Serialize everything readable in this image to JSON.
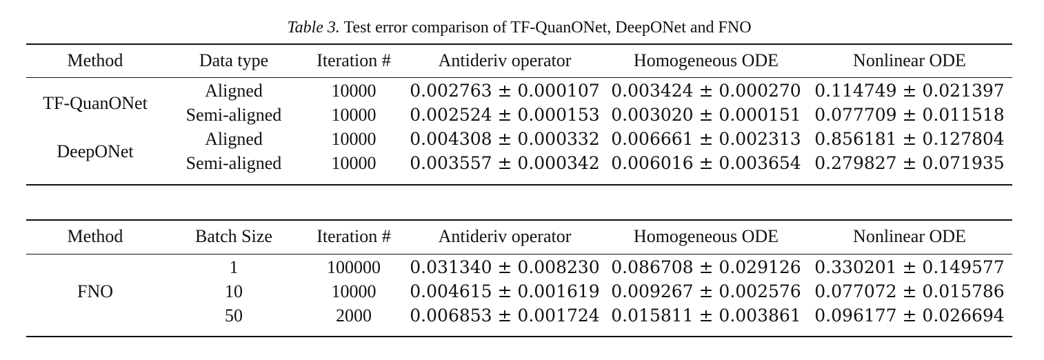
{
  "caption": {
    "label": "Table 3.",
    "text": "Test error comparison of TF-QuanONet, DeepONet and FNO"
  },
  "table1": {
    "headers": [
      "Method",
      "Data type",
      "Iteration #",
      "Antideriv operator",
      "Homogeneous ODE",
      "Nonlinear ODE"
    ],
    "groups": [
      {
        "method": "TF-QuanONet",
        "rows": [
          {
            "type": "Aligned",
            "iter": "10000",
            "antideriv": "0.002763 ± 0.000107",
            "homog": "0.003424 ± 0.000270",
            "nonlin": "0.114749 ± 0.021397"
          },
          {
            "type": "Semi-aligned",
            "iter": "10000",
            "antideriv": "0.002524 ± 0.000153",
            "homog": "0.003020 ± 0.000151",
            "nonlin": "0.077709 ± 0.011518"
          }
        ]
      },
      {
        "method": "DeepONet",
        "rows": [
          {
            "type": "Aligned",
            "iter": "10000",
            "antideriv": "0.004308 ± 0.000332",
            "homog": "0.006661 ± 0.002313",
            "nonlin": "0.856181 ± 0.127804"
          },
          {
            "type": "Semi-aligned",
            "iter": "10000",
            "antideriv": "0.003557 ± 0.000342",
            "homog": "0.006016 ± 0.003654",
            "nonlin": "0.279827 ± 0.071935"
          }
        ]
      }
    ]
  },
  "table2": {
    "headers": [
      "Method",
      "Batch Size",
      "Iteration #",
      "Antideriv operator",
      "Homogeneous ODE",
      "Nonlinear ODE"
    ],
    "method": "FNO",
    "rows": [
      {
        "batch": "1",
        "iter": "100000",
        "antideriv": "0.031340 ± 0.008230",
        "homog": "0.086708 ± 0.029126",
        "nonlin": "0.330201 ± 0.149577"
      },
      {
        "batch": "10",
        "iter": "10000",
        "antideriv": "0.004615 ± 0.001619",
        "homog": "0.009267 ± 0.002576",
        "nonlin": "0.077072 ± 0.015786"
      },
      {
        "batch": "50",
        "iter": "2000",
        "antideriv": "0.006853 ± 0.001724",
        "homog": "0.015811 ± 0.003861",
        "nonlin": "0.096177 ± 0.026694"
      }
    ]
  }
}
